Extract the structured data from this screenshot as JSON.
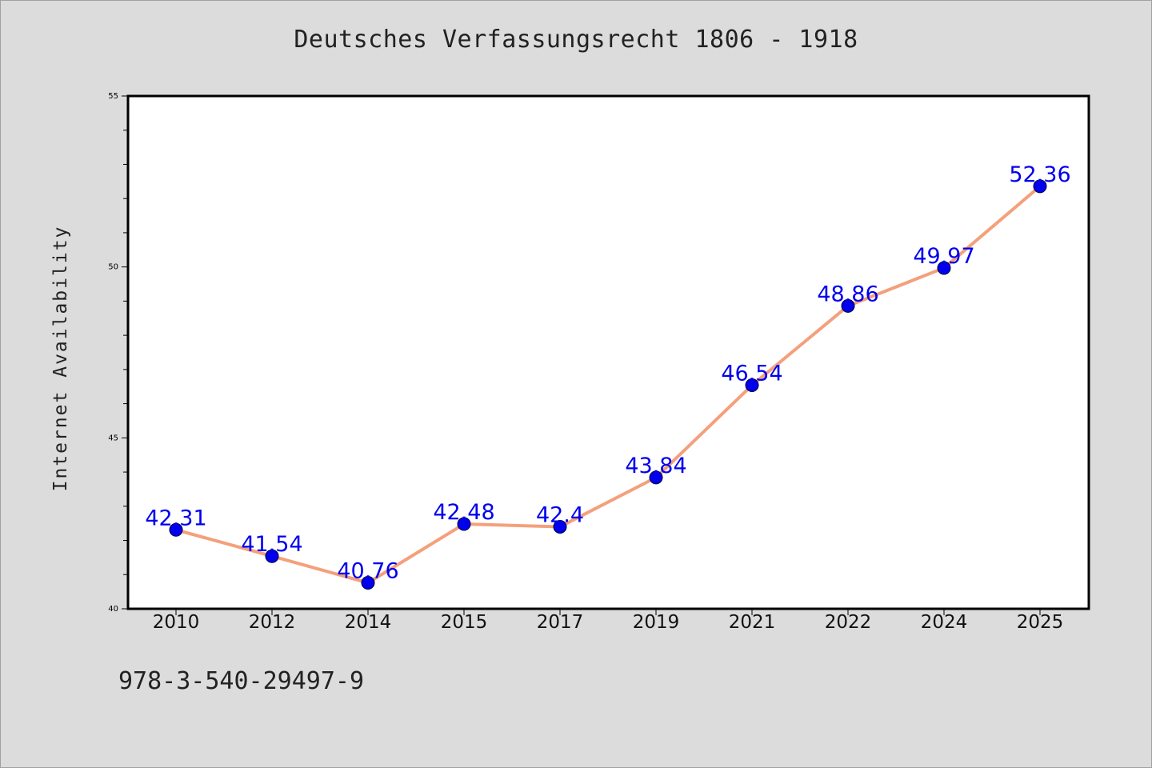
{
  "chart_data": {
    "type": "line",
    "title": "Deutsches Verfassungsrecht 1806 - 1918",
    "xlabel": "",
    "ylabel": "Internet Availability",
    "categories": [
      "2010",
      "2012",
      "2014",
      "2015",
      "2017",
      "2019",
      "2021",
      "2022",
      "2024",
      "2025"
    ],
    "values": [
      42.31,
      41.54,
      40.76,
      42.48,
      42.4,
      43.84,
      46.54,
      48.86,
      49.97,
      52.36
    ],
    "data_labels": [
      "42.31",
      "41.54",
      "40.76",
      "42.48",
      "42.4",
      "43.84",
      "46.54",
      "48.86",
      "49.97",
      "52.36"
    ],
    "ylim": [
      40,
      55
    ],
    "yticks": [
      "40",
      "45",
      "50",
      "55"
    ],
    "grid": false,
    "line_color": "#f4a07c",
    "marker_color": "#0000ee",
    "label_color": "#0000ee",
    "plot_background": "#ffffff"
  },
  "footer": {
    "code": "978-3-540-29497-9"
  }
}
